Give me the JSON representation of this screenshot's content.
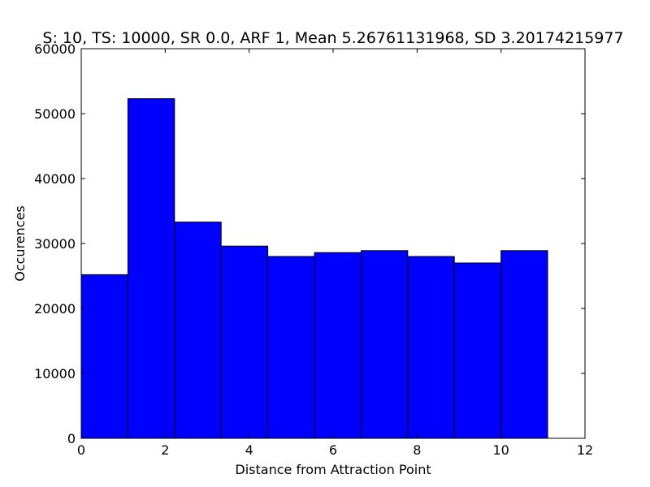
{
  "chart_data": {
    "type": "bar",
    "title": "S: 10, TS: 10000, SR 0.0, ARF 1, Mean 5.26761131968, SD 3.20174215977",
    "xlabel": "Distance from Attraction Point",
    "ylabel": "Occurences",
    "xlim": [
      0,
      12
    ],
    "ylim": [
      0,
      60000
    ],
    "xticks": [
      "0",
      "2",
      "4",
      "6",
      "8",
      "10",
      "12"
    ],
    "yticks": [
      "0",
      "10000",
      "20000",
      "30000",
      "40000",
      "50000",
      "60000"
    ],
    "bin_edges": [
      0.0,
      1.111,
      2.222,
      3.333,
      4.444,
      5.555,
      6.666,
      7.777,
      8.888,
      9.999,
      11.11
    ],
    "values": [
      25200,
      52300,
      33300,
      29600,
      28000,
      28600,
      28900,
      28000,
      27000,
      28900
    ],
    "bar_color": "#0000ff",
    "edge_color": "#000000",
    "grid": false
  }
}
